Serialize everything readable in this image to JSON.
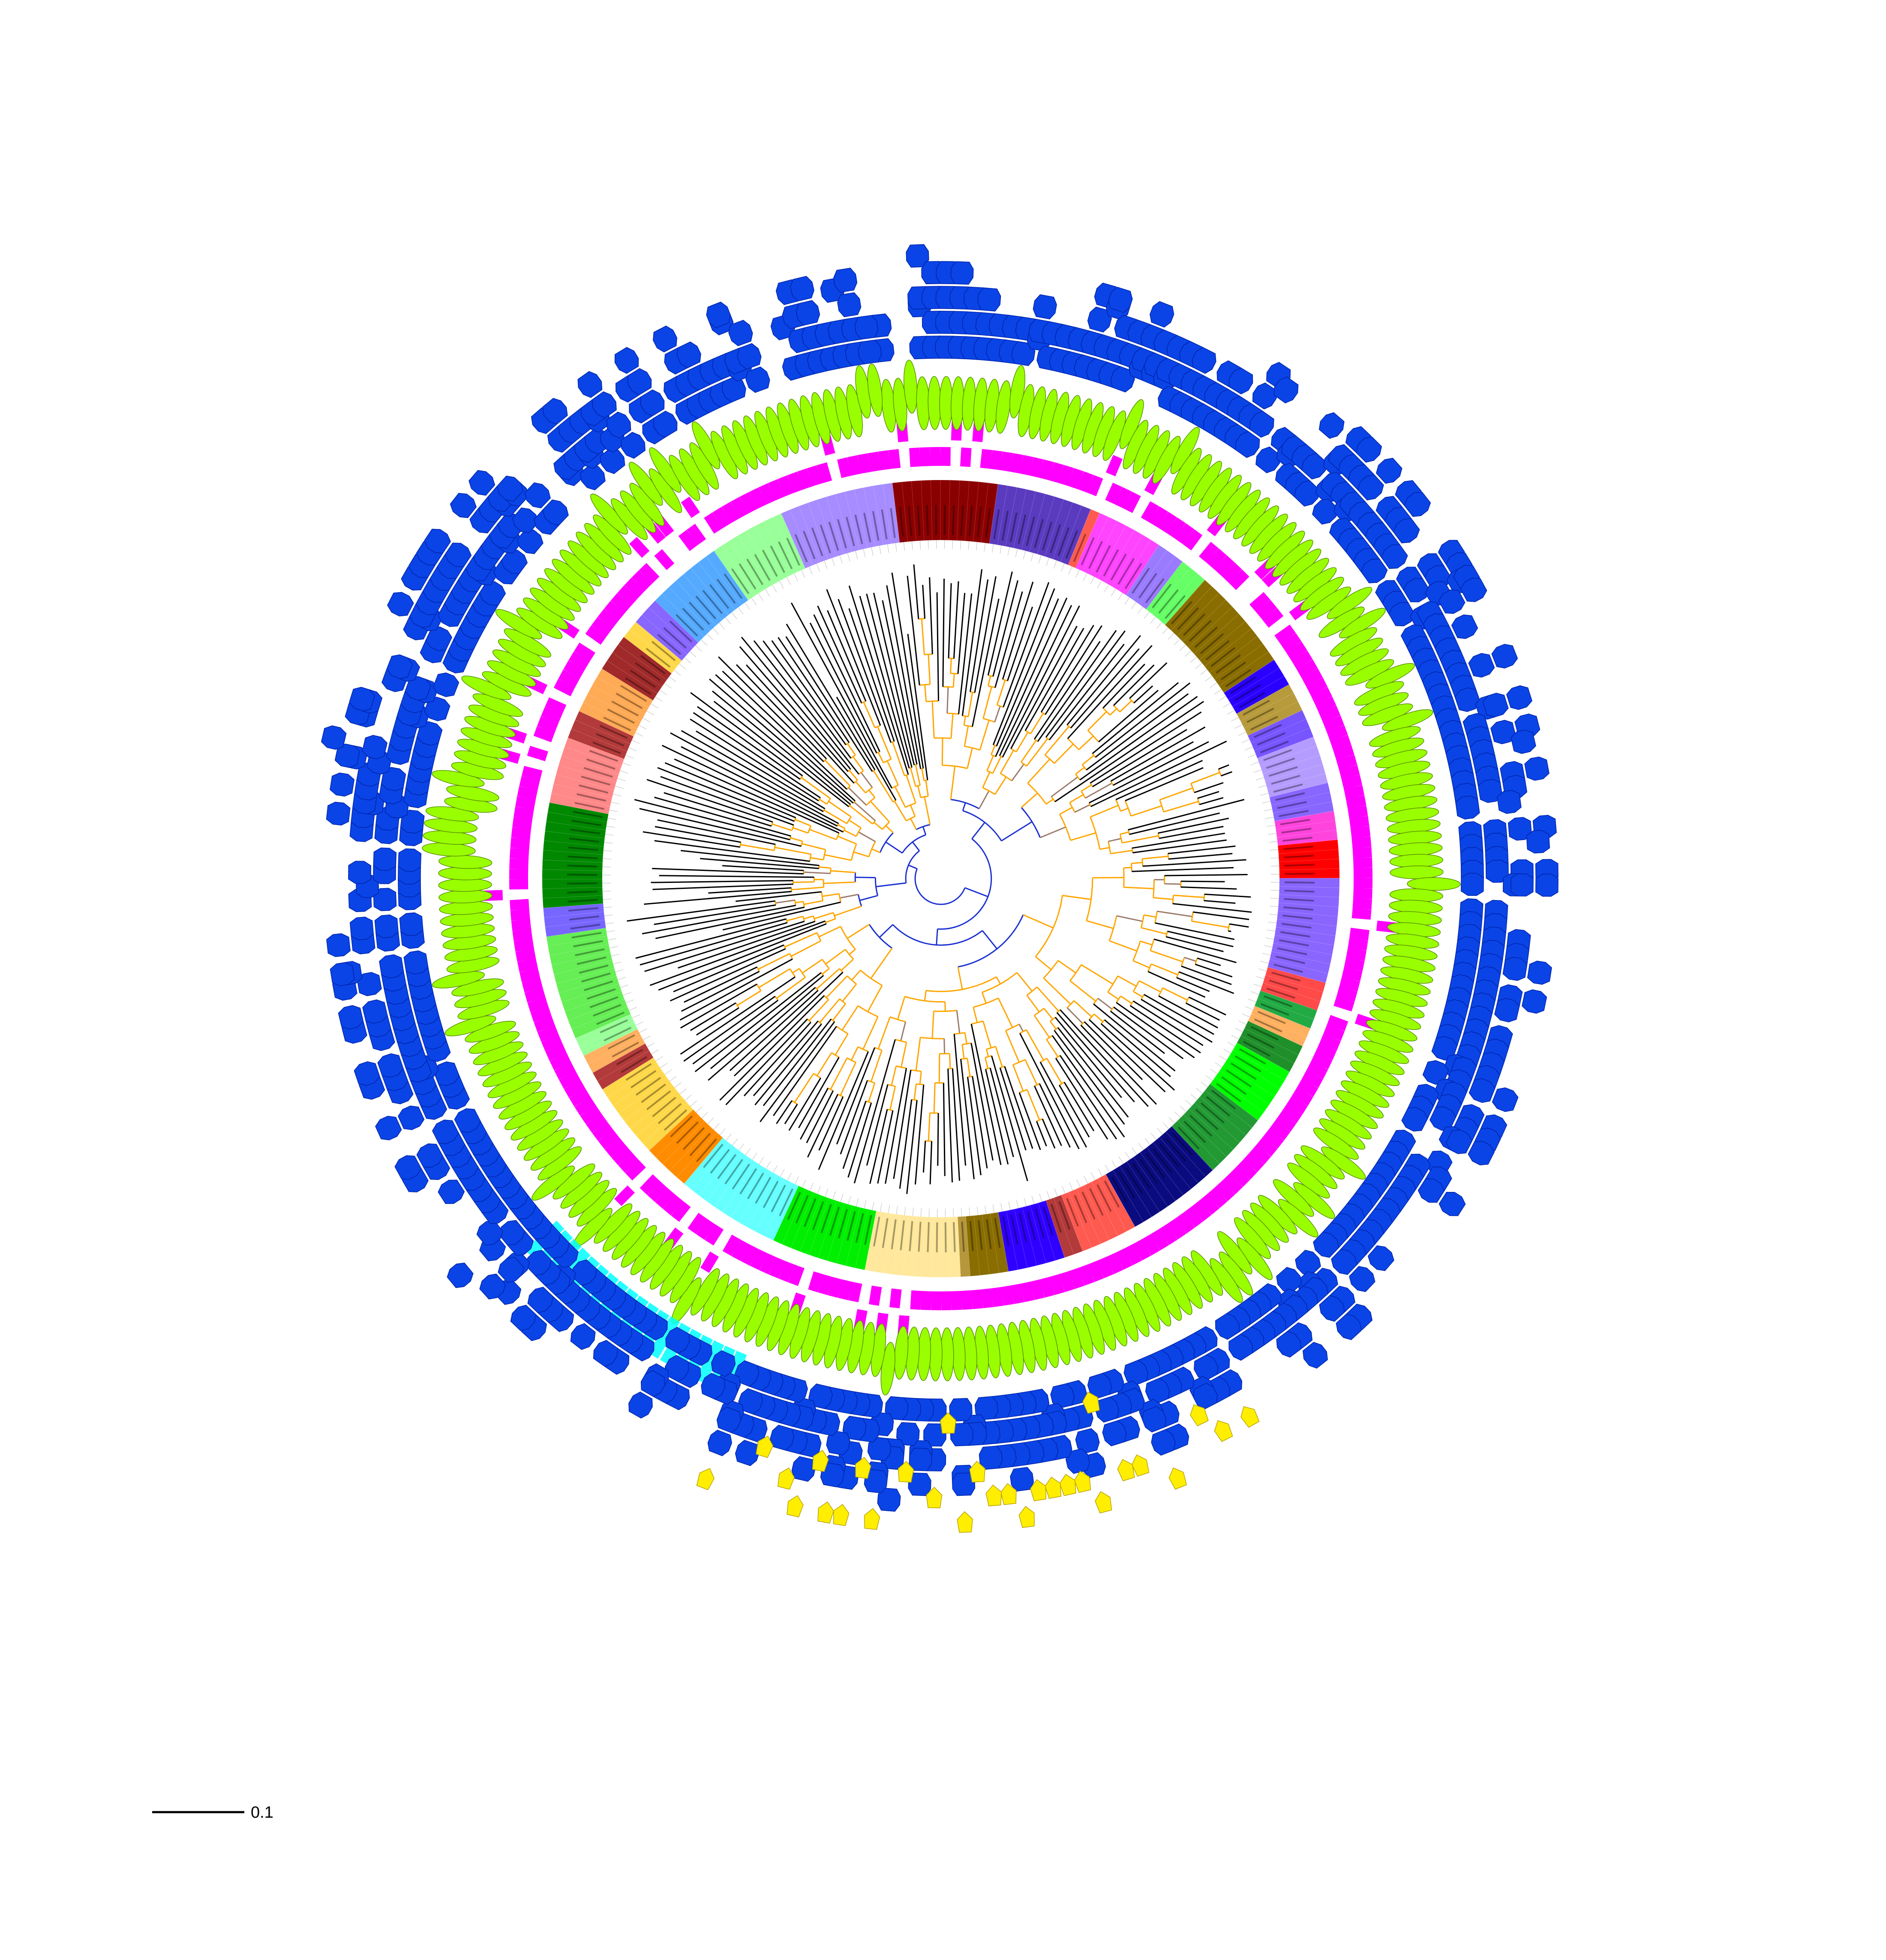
{
  "figure": {
    "type": "circular phylogenetic tree with annotation rings",
    "scale_bar": {
      "label": "0.1"
    },
    "colors": {
      "branch_main": "#ffa500",
      "branch_deep": "#1a2fd1",
      "branch_tip": "#000000",
      "branch_other": "#9a7a6a",
      "leaf_guide": "#c8c8c8",
      "ring_magenta": "#ff00ff",
      "ring_ellipse": "#99ff00",
      "ring_ellipse_stroke": "#5a8f00",
      "ring_hexagon": "#0a44e6",
      "ring_hexagon_stroke": "#0022aa",
      "ring_cyan": "#00ffff",
      "ring_yellow_diamond": "#ffee00",
      "scale_bar": "#000000"
    },
    "clade_colors": [
      "#8b0000",
      "#5a3bbf",
      "#ff5a50",
      "#ff44ff",
      "#9a7bff",
      "#66ff66",
      "#8a6d00",
      "#2a00ff",
      "#b79a3c",
      "#7755ff",
      "#b49cff",
      "#8866ff",
      "#ff44dd",
      "#ff0000",
      "#8a66ff",
      "#ff4a4a",
      "#22aa44",
      "#ffb060",
      "#1f8f2a",
      "#00ff00",
      "#229933",
      "#0b0b80",
      "#ff5a50",
      "#b33a3a",
      "#2f00ff",
      "#8a6d00",
      "#b7973c",
      "#ffe89c",
      "#00ee00",
      "#66ffff",
      "#ff8c00",
      "#ffd84a",
      "#b33a3a",
      "#ffb060",
      "#99ff99",
      "#66ee55",
      "#7766ff",
      "#008800",
      "#ff8888",
      "#b33a3a",
      "#ffaa55",
      "#a02a2a",
      "#ffd84a",
      "#8866ff",
      "#55aaff",
      "#99ff99",
      "#a68cff"
    ],
    "clade_sizes": [
      10,
      9,
      1,
      7,
      3,
      3,
      10,
      3,
      3,
      3,
      5,
      3,
      3,
      4,
      10,
      3,
      2,
      2,
      3,
      6,
      7,
      9,
      6,
      2,
      6,
      4,
      1,
      9,
      9,
      10,
      5,
      8,
      2,
      2,
      2,
      10,
      3,
      10,
      7,
      3,
      5,
      4,
      2,
      3,
      8,
      8,
      8
    ],
    "tree": {
      "leaf_count": 260
    }
  }
}
